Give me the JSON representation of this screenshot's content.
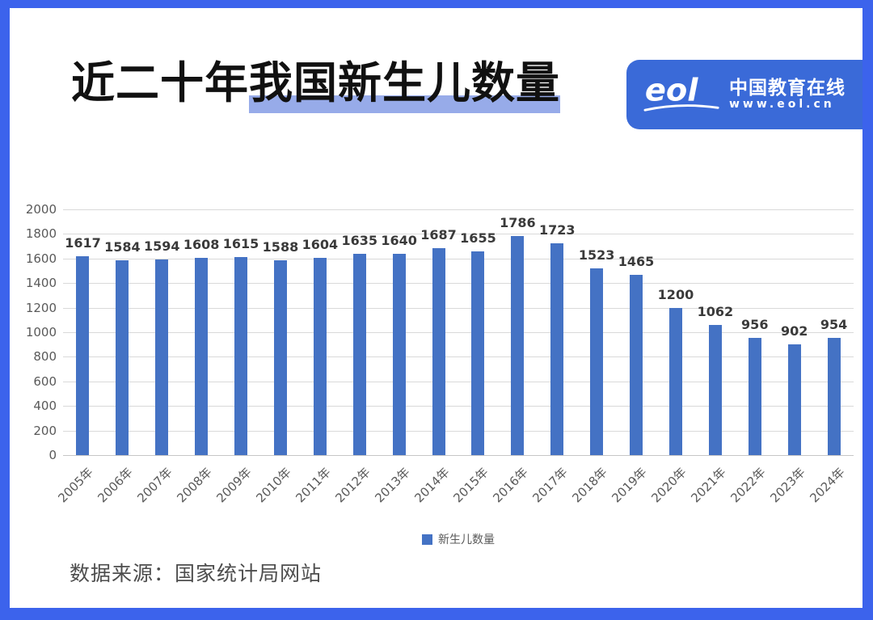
{
  "colors": {
    "border": "#3C63EC",
    "logo_background": "#3A6AD8",
    "bar": "#4472C4",
    "title_highlight": "#97ABE9",
    "gridline": "#D9D9D9",
    "axis_text": "#595959",
    "value_label": "#3A3A3A",
    "source_text": "#4D4D4D"
  },
  "header": {
    "title_full": "近二十年我国新生儿数量",
    "title_plain": "近二十年",
    "title_highlight": "我国新生儿数量"
  },
  "logo": {
    "wordmark": "eol",
    "brand_text": "中国教育在线",
    "url_text": "www.eol.cn"
  },
  "chart_data": {
    "type": "bar",
    "title": "近二十年我国新生儿数量",
    "categories": [
      "2005年",
      "2006年",
      "2007年",
      "2008年",
      "2009年",
      "2010年",
      "2011年",
      "2012年",
      "2013年",
      "2014年",
      "2015年",
      "2016年",
      "2017年",
      "2018年",
      "2019年",
      "2020年",
      "2021年",
      "2022年",
      "2023年",
      "2024年"
    ],
    "series": [
      {
        "name": "新生儿数量",
        "values": [
          1617,
          1584,
          1594,
          1608,
          1615,
          1588,
          1604,
          1635,
          1640,
          1687,
          1655,
          1786,
          1723,
          1523,
          1465,
          1200,
          1062,
          956,
          902,
          954
        ]
      }
    ],
    "legend": [
      "新生儿数量"
    ],
    "legend_position": "bottom",
    "xlabel": "",
    "ylabel": "",
    "ylim": [
      0,
      2000
    ],
    "yticks": [
      0,
      200,
      400,
      600,
      800,
      1000,
      1200,
      1400,
      1600,
      1800,
      2000
    ],
    "grid": true,
    "bar_color": "#4472C4",
    "value_labels_shown": true
  },
  "footer": {
    "source_text": "数据来源：国家统计局网站"
  }
}
